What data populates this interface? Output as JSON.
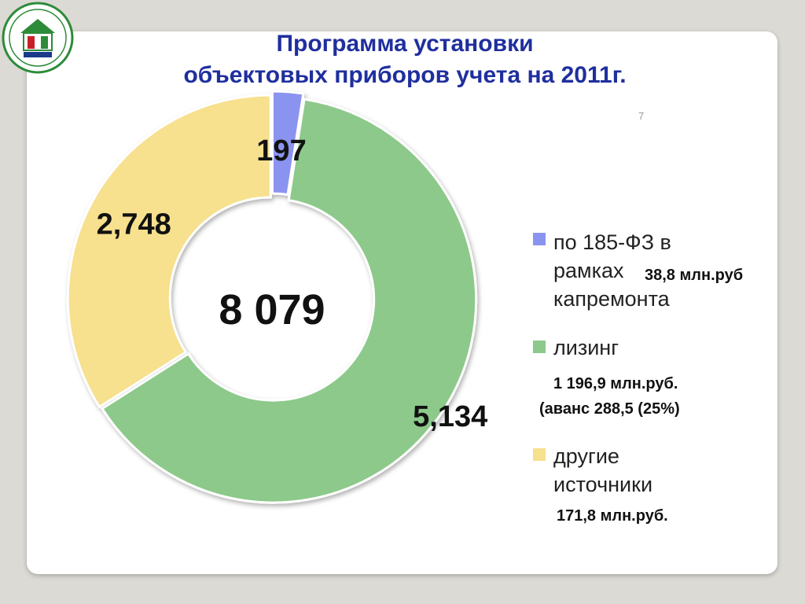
{
  "title": {
    "line1": "Программа установки",
    "line2": "объектовых приборов учета на 2011г."
  },
  "slide_number": "7",
  "total_label": "8 079",
  "legend": [
    {
      "line1": "по 185-ФЗ в",
      "line2": "рамках",
      "line3": "капремонта",
      "amount": "38,8 млн.руб",
      "color": "#8b93f0"
    },
    {
      "line1": "лизинг",
      "amount_line1": "1 196,9 млн.руб.",
      "amount_line2": "(аванс 288,5 (25%)",
      "color": "#8cc98a"
    },
    {
      "line1": "другие",
      "line2": "источники",
      "amount": "171,8 млн.руб.",
      "color": "#f7e08e"
    }
  ],
  "chart_data": {
    "type": "pie",
    "donut": true,
    "categories": [
      "по 185-ФЗ в рамках капремонта",
      "лизинг",
      "другие источники"
    ],
    "values": [
      197,
      5134,
      2748
    ],
    "labels": [
      "197",
      "5,134",
      "2,748"
    ],
    "colors": [
      "#8b93f0",
      "#8cc98a",
      "#f7e08e"
    ],
    "center_label": "8 079",
    "legend_position": "right"
  }
}
